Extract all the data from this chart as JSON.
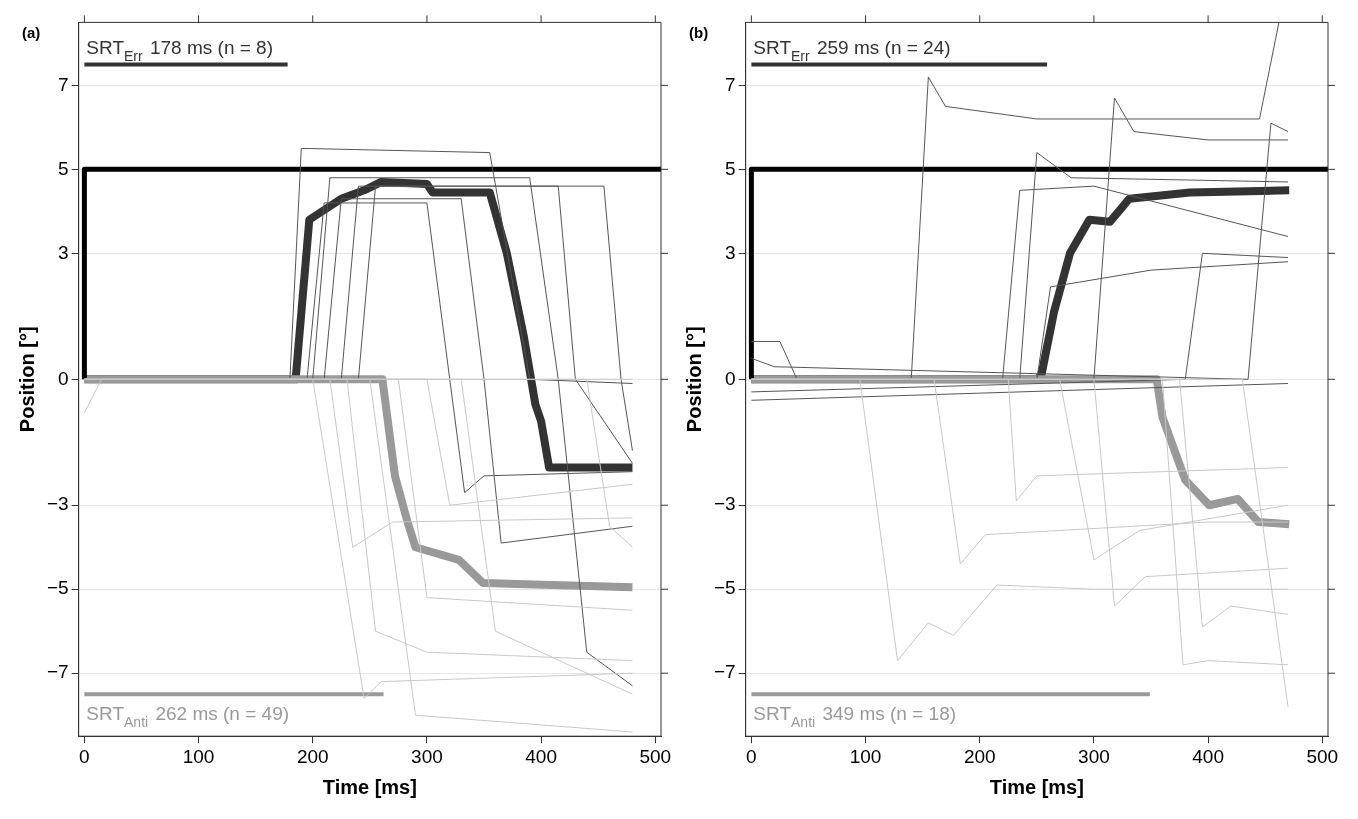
{
  "chart_data": [
    {
      "type": "line",
      "title": "(a)",
      "xlabel": "Time [ms]",
      "ylabel": "Position [°]",
      "xlim": [
        -5,
        505
      ],
      "xticks": [
        0,
        100,
        200,
        300,
        400,
        500
      ],
      "ylim": [
        -8.5,
        8.5
      ],
      "yticks": [
        -7,
        -5,
        -3,
        0,
        3,
        5,
        7
      ],
      "grid": "y",
      "series": [
        {
          "color": "#c8c8c8",
          "x": [
            0,
            15,
            480
          ],
          "values": [
            -0.8,
            0,
            0
          ]
        },
        {
          "color": "#c8c8c8",
          "x": [
            0,
            200,
            245,
            260,
            480
          ],
          "values": [
            0,
            0,
            -7.6,
            -7.2,
            -7.0
          ]
        },
        {
          "color": "#c8c8c8",
          "x": [
            0,
            215,
            235,
            270,
            480
          ],
          "values": [
            0,
            0,
            -4,
            -3.4,
            -3.3
          ]
        },
        {
          "color": "#c8c8c8",
          "x": [
            0,
            230,
            255,
            300,
            480
          ],
          "values": [
            0,
            0,
            -6,
            -6.5,
            -6.7
          ]
        },
        {
          "color": "#c8c8c8",
          "x": [
            0,
            250,
            290,
            480
          ],
          "values": [
            0,
            0,
            -8,
            -8.4
          ]
        },
        {
          "color": "#c8c8c8",
          "x": [
            0,
            275,
            300,
            480
          ],
          "values": [
            0,
            0,
            -5.2,
            -5.5
          ]
        },
        {
          "color": "#c8c8c8",
          "x": [
            0,
            300,
            320,
            480
          ],
          "values": [
            0,
            0,
            -3,
            -2.5
          ]
        },
        {
          "color": "#c8c8c8",
          "x": [
            0,
            330,
            360,
            480
          ],
          "values": [
            0,
            0,
            -6,
            -7.5
          ]
        },
        {
          "color": "#c8c8c8",
          "x": [
            0,
            440,
            460,
            480
          ],
          "values": [
            0,
            0,
            -3.5,
            -4.0
          ]
        },
        {
          "color": "#555555",
          "x": [
            0,
            180,
            190,
            355,
            390,
            480
          ],
          "values": [
            0,
            0,
            5.5,
            5.4,
            0,
            -0.1
          ]
        },
        {
          "color": "#555555",
          "x": [
            0,
            195,
            210,
            300,
            320,
            333,
            350,
            480
          ],
          "values": [
            0,
            0,
            4.2,
            4.2,
            0,
            -2.7,
            -2.3,
            -2.2
          ]
        },
        {
          "color": "#555555",
          "x": [
            0,
            225,
            240,
            415,
            430,
            480
          ],
          "values": [
            0,
            0,
            4.6,
            4.6,
            0,
            -2.0
          ]
        },
        {
          "color": "#555555",
          "x": [
            0,
            210,
            225,
            330,
            350,
            365,
            480
          ],
          "values": [
            0,
            0,
            4.3,
            4.3,
            0,
            -3.9,
            -3.5
          ]
        },
        {
          "color": "#555555",
          "x": [
            0,
            200,
            215,
            390,
            415,
            440,
            480
          ],
          "values": [
            0,
            0,
            4.8,
            4.8,
            0,
            -6.5,
            -7.3
          ]
        },
        {
          "color": "#555555",
          "x": [
            0,
            240,
            255,
            455,
            470,
            480
          ],
          "values": [
            0,
            0,
            4.6,
            4.6,
            0,
            -1.7
          ]
        },
        {
          "color": "#000000",
          "x": [
            0,
            0,
            505
          ],
          "values": [
            0,
            5,
            5
          ]
        },
        {
          "color": "#999999",
          "x": [
            0,
            261,
            272,
            283,
            290,
            328,
            349,
            480
          ],
          "values": [
            0,
            0,
            -2.3,
            -3.4,
            -4.0,
            -4.3,
            -4.85,
            -4.95
          ]
        },
        {
          "color": "#333333",
          "x": [
            0,
            185,
            197,
            225,
            245,
            260,
            300,
            305,
            355,
            370,
            385,
            395,
            400,
            407,
            480
          ],
          "values": [
            0,
            0,
            3.8,
            4.3,
            4.5,
            4.7,
            4.65,
            4.45,
            4.45,
            3,
            1,
            -0.6,
            -1,
            -2.1,
            -2.1
          ]
        },
        {
          "name": "SRT$_{Err}$ 178 ms (n = 8)",
          "color": "#333333",
          "x": [
            0,
            178
          ],
          "values": [
            7.5,
            7.5
          ]
        },
        {
          "name": "SRT$_{Anti}$ 262 ms (n = 49)",
          "color": "#999999",
          "x": [
            0,
            262
          ],
          "values": [
            -7.5,
            -7.5
          ]
        }
      ]
    },
    {
      "type": "line",
      "title": "(b)",
      "xlabel": "Time [ms]",
      "ylabel": "Position [°]",
      "xlim": [
        -5,
        505
      ],
      "xticks": [
        0,
        100,
        200,
        300,
        400,
        500
      ],
      "ylim": [
        -8.5,
        8.5
      ],
      "yticks": [
        -7,
        -5,
        -3,
        0,
        3,
        5,
        7
      ],
      "grid": "y",
      "series": [
        {
          "color": "#c8c8c8",
          "x": [
            0,
            95,
            128,
            155,
            177,
            215,
            300,
            470
          ],
          "values": [
            0,
            0,
            -6.7,
            -5.8,
            -6.1,
            -4.9,
            -5.0,
            -5.0
          ]
        },
        {
          "color": "#c8c8c8",
          "x": [
            0,
            160,
            183,
            205,
            400,
            470
          ],
          "values": [
            0,
            0,
            -4.4,
            -3.7,
            -3.4,
            -3.4
          ]
        },
        {
          "color": "#c8c8c8",
          "x": [
            0,
            225,
            232,
            250,
            470
          ],
          "values": [
            0,
            0,
            -2.9,
            -2.3,
            -2.1
          ]
        },
        {
          "color": "#c8c8c8",
          "x": [
            0,
            270,
            300,
            340,
            470
          ],
          "values": [
            0,
            0,
            -4.3,
            -3.6,
            -3.0
          ]
        },
        {
          "color": "#c8c8c8",
          "x": [
            0,
            300,
            318,
            345,
            470
          ],
          "values": [
            0,
            0,
            -5.4,
            -4.7,
            -4.5
          ]
        },
        {
          "color": "#c8c8c8",
          "x": [
            0,
            360,
            378,
            400,
            470
          ],
          "values": [
            0,
            0,
            -6.8,
            -6.7,
            -6.8
          ]
        },
        {
          "color": "#c8c8c8",
          "x": [
            0,
            375,
            395,
            420,
            470
          ],
          "values": [
            0,
            0,
            -5.9,
            -5.4,
            -5.6
          ]
        },
        {
          "color": "#c8c8c8",
          "x": [
            0,
            430,
            470
          ],
          "values": [
            0,
            0,
            -7.8
          ]
        },
        {
          "color": "#555555",
          "x": [
            0,
            140,
            155,
            170,
            250,
            445,
            462
          ],
          "values": [
            0,
            0,
            7.2,
            6.5,
            6.2,
            6.2,
            8.5
          ]
        },
        {
          "color": "#555555",
          "x": [
            0,
            300,
            318,
            335,
            400,
            470
          ],
          "values": [
            0,
            0,
            6.7,
            5.9,
            5.7,
            5.7
          ]
        },
        {
          "color": "#555555",
          "x": [
            0,
            20,
            435,
            455,
            470
          ],
          "values": [
            0.5,
            0.3,
            0,
            6.1,
            5.9
          ]
        },
        {
          "color": "#555555",
          "x": [
            0,
            220,
            235,
            300,
            470
          ],
          "values": [
            0,
            0,
            4.5,
            4.6,
            3.4
          ]
        },
        {
          "color": "#555555",
          "x": [
            0,
            235,
            250,
            280,
            470
          ],
          "values": [
            0,
            0,
            5.4,
            4.8,
            4.7
          ]
        },
        {
          "color": "#555555",
          "x": [
            0,
            25,
            40,
            250,
            262,
            350,
            470
          ],
          "values": [
            0.9,
            0.9,
            0,
            0,
            2.2,
            2.6,
            2.8
          ]
        },
        {
          "color": "#555555",
          "x": [
            0,
            380,
            395,
            470
          ],
          "values": [
            -0.3,
            0,
            3,
            2.9
          ]
        },
        {
          "color": "#555555",
          "x": [
            0,
            470
          ],
          "values": [
            -0.5,
            -0.1
          ]
        },
        {
          "color": "#000000",
          "x": [
            0,
            0,
            505
          ],
          "values": [
            0,
            5,
            5
          ]
        },
        {
          "color": "#999999",
          "x": [
            0,
            355,
            360,
            380,
            401,
            426,
            444,
            471
          ],
          "values": [
            0,
            0,
            -0.9,
            -2.4,
            -3.0,
            -2.85,
            -3.4,
            -3.45
          ]
        },
        {
          "color": "#333333",
          "x": [
            0,
            250,
            254,
            265,
            279,
            296,
            314,
            331,
            384,
            471
          ],
          "values": [
            0,
            0,
            0.1,
            1.6,
            3.0,
            3.8,
            3.75,
            4.3,
            4.45,
            4.5
          ]
        },
        {
          "name": "SRT$_{Err}$ 259 ms (n = 24)",
          "color": "#333333",
          "x": [
            0,
            259
          ],
          "values": [
            7.5,
            7.5
          ]
        },
        {
          "name": "SRT$_{Anti}$ 349 ms (n = 18)",
          "color": "#999999",
          "x": [
            0,
            349
          ],
          "values": [
            -7.5,
            -7.5
          ]
        }
      ]
    }
  ]
}
